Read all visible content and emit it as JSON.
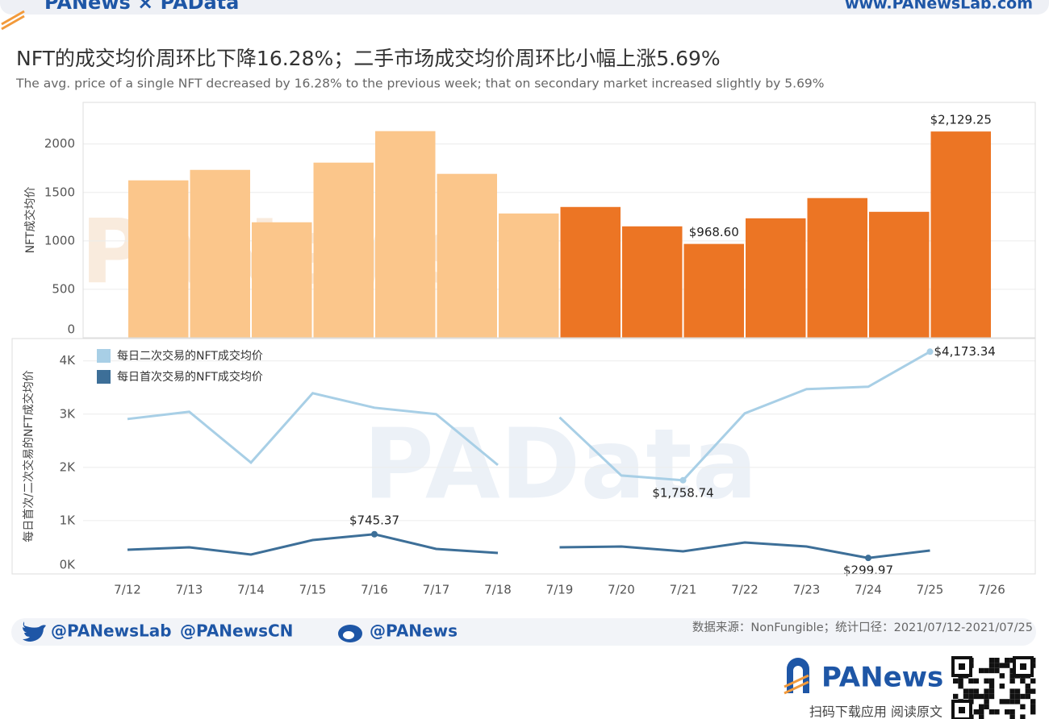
{
  "header": {
    "brand": "PANews × PAData",
    "url": "www.PANewsLab.com"
  },
  "title": "NFT的成交均价周环比下降16.28%；二手市场成交均价周环比小幅上涨5.69%",
  "subtitle": "The avg. price of a single NFT decreased by 16.28% to the previous week; that on secondary market increased slightly by 5.69%",
  "watermarks": [
    "PANews",
    "PAData"
  ],
  "chart_data": [
    {
      "type": "bar",
      "ylabel": "NFT成交均价",
      "values": [
        1625,
        1733,
        1192,
        1808,
        2133,
        1692,
        1283,
        1350,
        1150,
        968.6,
        1233,
        1442,
        1300,
        2129.25
      ],
      "value_labels": [
        null,
        null,
        null,
        null,
        null,
        null,
        null,
        null,
        null,
        "$968.60",
        null,
        null,
        null,
        "$2,129.25"
      ],
      "colors": [
        "#fbc68b",
        "#fbc68b",
        "#fbc68b",
        "#fbc68b",
        "#fbc68b",
        "#fbc68b",
        "#fbc68b",
        "#ec7524",
        "#ec7524",
        "#ec7524",
        "#ec7524",
        "#ec7524",
        "#ec7524",
        "#ec7524"
      ],
      "ylim": [
        0,
        2430
      ],
      "yticks": [
        0,
        500,
        1000,
        1500,
        2000
      ],
      "grid": true
    },
    {
      "type": "line",
      "ylabel": "每日首次/二次交易的NFT成交均价",
      "categories": [
        "7/12",
        "7/13",
        "7/14",
        "7/15",
        "7/16",
        "7/17",
        "7/18",
        "7/19",
        "7/20",
        "7/21",
        "7/22",
        "7/23",
        "7/24",
        "7/25",
        "7/26"
      ],
      "series": [
        {
          "name": "每日二次交易的NFT成交均价",
          "color": "#a8cfe6",
          "values": [
            2909,
            3045,
            2091,
            3394,
            3121,
            3000,
            2045,
            2939,
            1848,
            1758.74,
            3015,
            3470,
            3515,
            4173.34,
            null
          ],
          "value_labels": [
            null,
            null,
            null,
            null,
            null,
            null,
            null,
            null,
            null,
            "$1,758.74",
            null,
            null,
            null,
            "$4,173.34",
            null
          ]
        },
        {
          "name": "每日首次交易的NFT成交均价",
          "color": "#3d6f98",
          "values": [
            455,
            500,
            364,
            636,
            745.37,
            470,
            394,
            500,
            515,
            424,
            591,
            515,
            299.97,
            439,
            null
          ],
          "value_labels": [
            null,
            null,
            null,
            null,
            "$745.37",
            null,
            null,
            null,
            null,
            null,
            null,
            null,
            "$299.97",
            null,
            null
          ]
        }
      ],
      "gap_after": 6,
      "ylim": [
        0,
        4420
      ],
      "yticks": [
        {
          "value": 0,
          "label": "0K"
        },
        {
          "value": 1000,
          "label": "1K"
        },
        {
          "value": 2000,
          "label": "2K"
        },
        {
          "value": 3000,
          "label": "3K"
        },
        {
          "value": 4000,
          "label": "4K"
        }
      ],
      "grid": true,
      "legend": "top-left"
    }
  ],
  "footer": {
    "social": [
      "@PANewsLab",
      "@PANewsCN",
      "@PANews"
    ],
    "source": "数据来源：NonFungible；统计口径：2021/07/12-2021/07/25",
    "logo": "PANews",
    "qr_caption": "扫码下载应用 阅读原文"
  }
}
